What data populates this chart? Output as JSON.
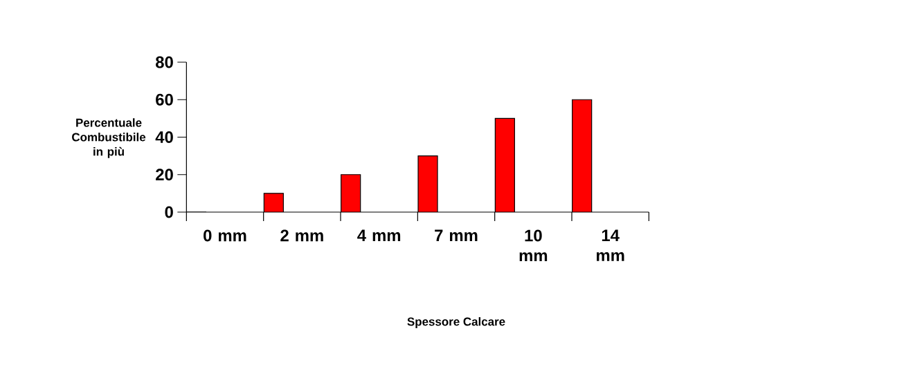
{
  "chart_data": {
    "type": "bar",
    "xlabel": "Spessore Calcare",
    "ylabel": "Percentuale Combustibile in più",
    "categories": [
      "0 mm",
      "2 mm",
      "4 mm",
      "7 mm",
      "10 mm",
      "14 mm"
    ],
    "values": [
      0,
      10,
      20,
      30,
      50,
      60
    ],
    "color": "#ff0000",
    "ylim": [
      0,
      80
    ],
    "yticks": [
      0,
      20,
      40,
      60,
      80
    ]
  }
}
